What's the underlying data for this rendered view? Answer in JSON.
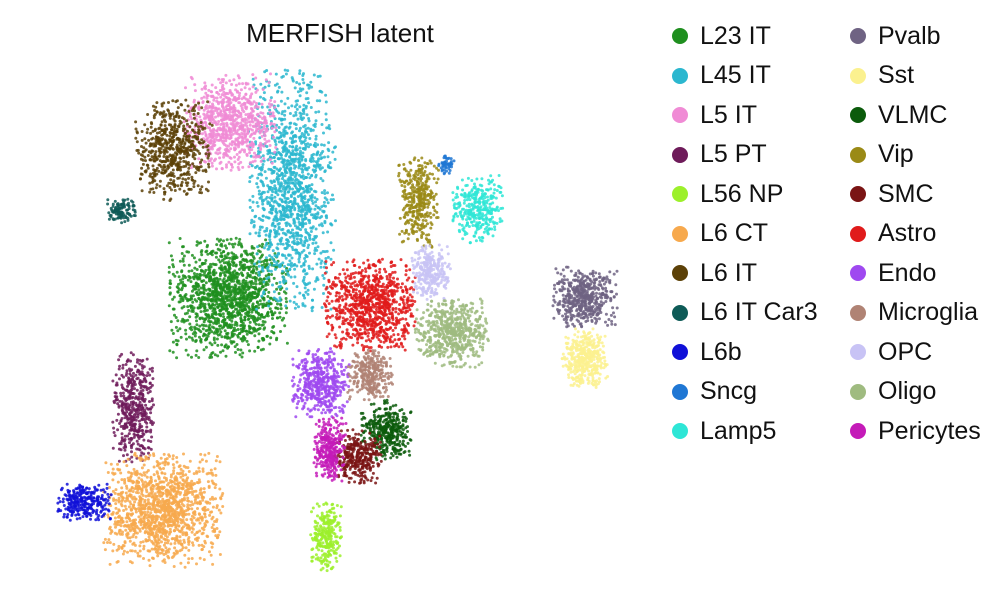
{
  "chart_data": {
    "type": "scatter",
    "title": "MERFISH latent",
    "legend": "right",
    "grid": false,
    "series": [
      {
        "name": "L23 IT",
        "color": "#1f8f1f",
        "center": [
          229,
          298
        ],
        "spread": [
          52,
          52
        ],
        "n": 1400
      },
      {
        "name": "L45 IT",
        "color": "#2bb7cf",
        "center": [
          292,
          190
        ],
        "spread": [
          38,
          105
        ],
        "n": 1300
      },
      {
        "name": "L5 IT",
        "color": "#f08bd5",
        "center": [
          230,
          122
        ],
        "spread": [
          40,
          42
        ],
        "n": 800
      },
      {
        "name": "L5 PT",
        "color": "#6e1b5a",
        "center": [
          133,
          408
        ],
        "spread": [
          18,
          48
        ],
        "n": 450
      },
      {
        "name": "L56 NP",
        "color": "#9cf02b",
        "center": [
          326,
          537
        ],
        "spread": [
          14,
          30
        ],
        "n": 260
      },
      {
        "name": "L6 CT",
        "color": "#f7a94d",
        "center": [
          163,
          510
        ],
        "spread": [
          52,
          50
        ],
        "n": 1300
      },
      {
        "name": "L6 IT",
        "color": "#5c4107",
        "center": [
          174,
          150
        ],
        "spread": [
          34,
          44
        ],
        "n": 600
      },
      {
        "name": "L6 IT Car3",
        "color": "#0e5b57",
        "center": [
          122,
          211
        ],
        "spread": [
          13,
          11
        ],
        "n": 120
      },
      {
        "name": "L6b",
        "color": "#1010d8",
        "center": [
          85,
          502
        ],
        "spread": [
          24,
          16
        ],
        "n": 280
      },
      {
        "name": "Sncg",
        "color": "#1f77d4",
        "center": [
          446,
          165
        ],
        "spread": [
          7,
          8
        ],
        "n": 50
      },
      {
        "name": "Lamp5",
        "color": "#2ee6d6",
        "center": [
          478,
          209
        ],
        "spread": [
          22,
          30
        ],
        "n": 320
      },
      {
        "name": "Pvalb",
        "color": "#6f6383",
        "center": [
          585,
          297
        ],
        "spread": [
          28,
          26
        ],
        "n": 500
      },
      {
        "name": "Sst",
        "color": "#fbf18f",
        "center": [
          585,
          358
        ],
        "spread": [
          20,
          26
        ],
        "n": 420
      },
      {
        "name": "VLMC",
        "color": "#0b5b0b",
        "center": [
          386,
          430
        ],
        "spread": [
          22,
          26
        ],
        "n": 360
      },
      {
        "name": "Vip",
        "color": "#9a8a16",
        "center": [
          418,
          203
        ],
        "spread": [
          18,
          40
        ],
        "n": 360
      },
      {
        "name": "SMC",
        "color": "#7a1414",
        "center": [
          358,
          457
        ],
        "spread": [
          22,
          24
        ],
        "n": 320
      },
      {
        "name": "Astro",
        "color": "#e01b1b",
        "center": [
          370,
          305
        ],
        "spread": [
          40,
          40
        ],
        "n": 900
      },
      {
        "name": "Endo",
        "color": "#9f49f0",
        "center": [
          320,
          383
        ],
        "spread": [
          26,
          30
        ],
        "n": 460
      },
      {
        "name": "Microglia",
        "color": "#b08374",
        "center": [
          370,
          375
        ],
        "spread": [
          20,
          22
        ],
        "n": 300
      },
      {
        "name": "OPC",
        "color": "#c8c3f5",
        "center": [
          430,
          272
        ],
        "spread": [
          18,
          24
        ],
        "n": 280
      },
      {
        "name": "Oligo",
        "color": "#9fbb80",
        "center": [
          452,
          333
        ],
        "spread": [
          32,
          30
        ],
        "n": 600
      },
      {
        "name": "Pericytes",
        "color": "#c41bb8",
        "center": [
          330,
          450
        ],
        "spread": [
          14,
          28
        ],
        "n": 300
      }
    ]
  }
}
